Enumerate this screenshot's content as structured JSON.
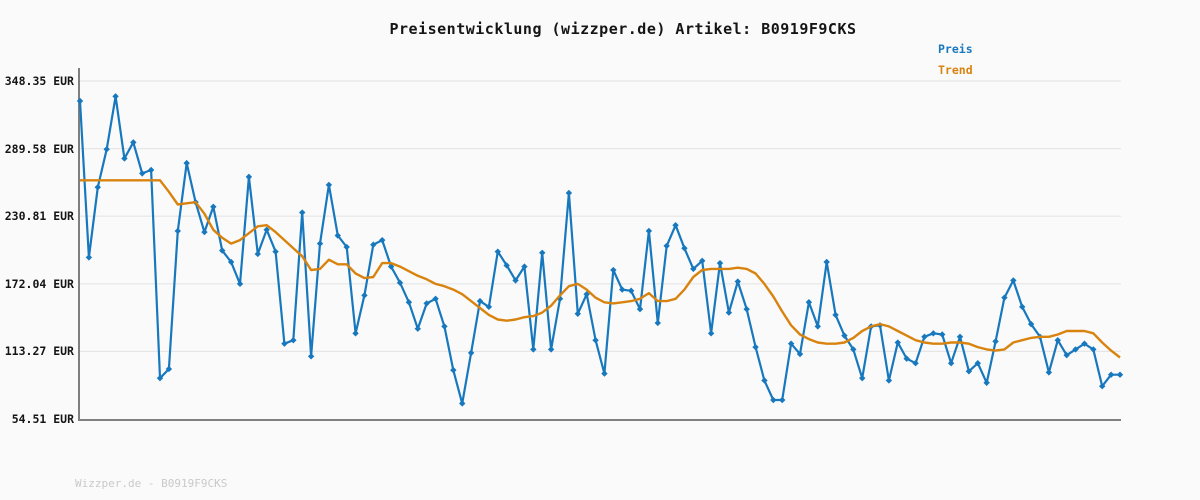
{
  "header": {
    "title": "Preisentwicklung (wizzper.de) Artikel: B0919F9CKS"
  },
  "legend": {
    "items": [
      {
        "label": "Preis",
        "color": "#1878be"
      },
      {
        "label": "Trend",
        "color": "#d9830f"
      }
    ]
  },
  "footer": {
    "text": "Wizzper.de - B0919F9CKS"
  },
  "colors": {
    "background": "#fafafa",
    "grid": "#e6e6e6",
    "axis": "#7f7f7f",
    "price_line": "#1878be",
    "trend_line": "#d9830f",
    "text": "#151515",
    "footer_text": "#c9c9c9"
  },
  "chart_data": {
    "type": "line",
    "title": "Preisentwicklung (wizzper.de) Artikel: B0919F9CKS",
    "xlabel": "",
    "ylabel": "",
    "grid": true,
    "legend_position": "top-right",
    "x_axis": {
      "tick_labels_visible": false,
      "point_count": 118
    },
    "y_axis": {
      "unit": "EUR",
      "range": [
        54.51,
        348.35
      ],
      "ticks": [
        {
          "label": "348.35 EUR",
          "value": 348.35
        },
        {
          "label": "289.58 EUR",
          "value": 289.58
        },
        {
          "label": "230.81 EUR",
          "value": 230.81
        },
        {
          "label": "172.04 EUR",
          "value": 172.04
        },
        {
          "label": "113.27 EUR",
          "value": 113.27
        },
        {
          "label": "54.51 EUR",
          "value": 54.51
        }
      ]
    },
    "series": [
      {
        "name": "Preis",
        "color": "#1878be",
        "marker": "diamond",
        "line_width": 2.2,
        "values": [
          331,
          195,
          256,
          289,
          335,
          281,
          295,
          268,
          271,
          90,
          98,
          218,
          277,
          243,
          217,
          239,
          201,
          191,
          172,
          265,
          198,
          219,
          200,
          120,
          123,
          234,
          109,
          207,
          258,
          214,
          204,
          129,
          162,
          206,
          210,
          187,
          173,
          156,
          133,
          155,
          159,
          135,
          97,
          68,
          112,
          157,
          152,
          200,
          188,
          175,
          187,
          115,
          199,
          115,
          159,
          251,
          146,
          163,
          123,
          94,
          184,
          167,
          166,
          150,
          218,
          138,
          205,
          223,
          203,
          185,
          192,
          129,
          190,
          147,
          174,
          150,
          117,
          88,
          71,
          71,
          120,
          111,
          156,
          135,
          191,
          145,
          127,
          115,
          90,
          135,
          136,
          88,
          121,
          107,
          103,
          126,
          129,
          128,
          103,
          126,
          96,
          103,
          86,
          122,
          160,
          175,
          152,
          137,
          126,
          95,
          123,
          110,
          115,
          120,
          115,
          83,
          93,
          93
        ]
      },
      {
        "name": "Trend",
        "color": "#d9830f",
        "marker": "none",
        "line_width": 2.4,
        "values": [
          262,
          262,
          262,
          262,
          262,
          262,
          262,
          262,
          262,
          262,
          252,
          241,
          242,
          243,
          233,
          219,
          212,
          207,
          210,
          216,
          222,
          223,
          217,
          210,
          203,
          196,
          184,
          185,
          193,
          189,
          189,
          181,
          177,
          178,
          190,
          190,
          187,
          183,
          179,
          176,
          172,
          170,
          167,
          163,
          157,
          151,
          145,
          141,
          140,
          141,
          143,
          144,
          147,
          153,
          162,
          170,
          172,
          167,
          160,
          156,
          155,
          156,
          157,
          159,
          164,
          157,
          157,
          159,
          167,
          178,
          184,
          185,
          185,
          185,
          186,
          185,
          181,
          172,
          161,
          148,
          136,
          128,
          124,
          121,
          120,
          120,
          121,
          125,
          131,
          135,
          137,
          135,
          131,
          127,
          123,
          121,
          120,
          120,
          121,
          121,
          120,
          117,
          115,
          114,
          115,
          121,
          123,
          125,
          126,
          126,
          128,
          131,
          131,
          131,
          129,
          121,
          114,
          108
        ]
      }
    ]
  }
}
